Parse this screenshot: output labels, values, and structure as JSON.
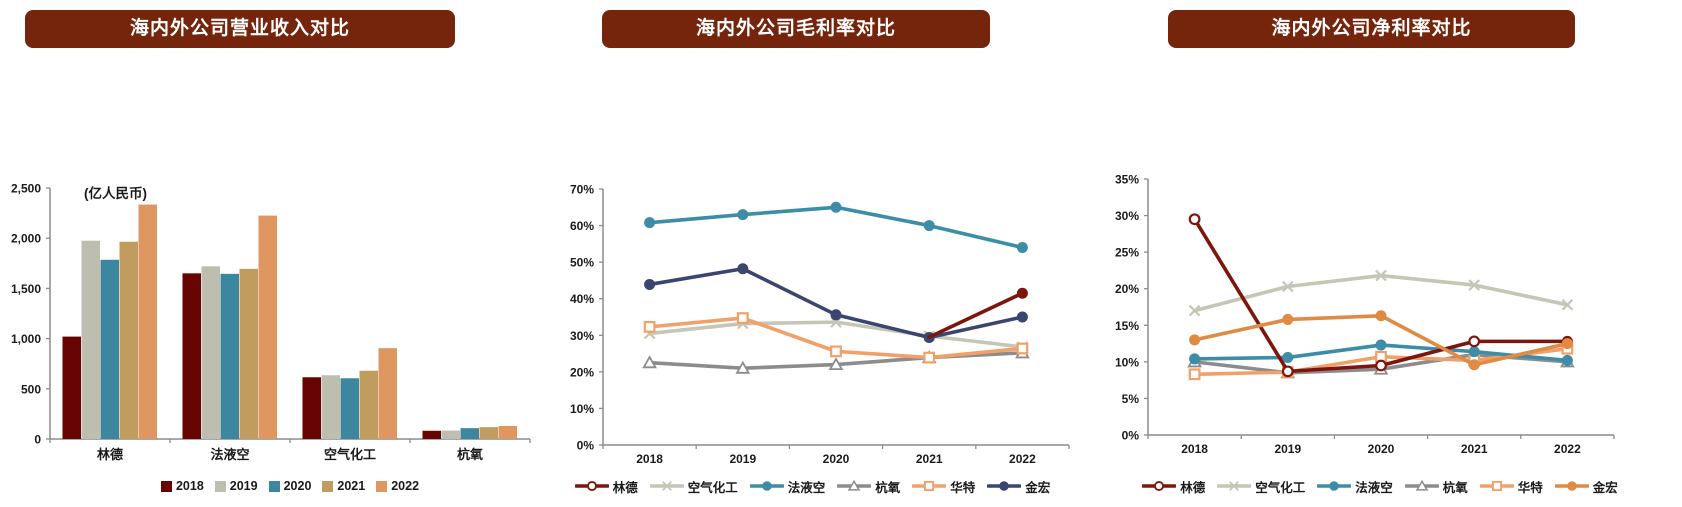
{
  "colors": {
    "title_bg": "#74250C",
    "title_text": "#FFFFFF",
    "axis": "#8C8C8C",
    "tick_text": "#1A1A1A"
  },
  "chart_data": [
    {
      "id": "revenue",
      "type": "bar",
      "title": "海内外公司营业收入对比",
      "unit_label": "(亿人民币)",
      "categories": [
        "林德",
        "法液空",
        "空气化工",
        "杭氧"
      ],
      "series": [
        {
          "name": "2018",
          "color": "#670301",
          "values": [
            1020,
            1650,
            615,
            82
          ]
        },
        {
          "name": "2019",
          "color": "#BEBEB0",
          "values": [
            1975,
            1720,
            635,
            84
          ]
        },
        {
          "name": "2020",
          "color": "#3C86A0",
          "values": [
            1785,
            1645,
            605,
            108
          ]
        },
        {
          "name": "2021",
          "color": "#C09D5E",
          "values": [
            1965,
            1695,
            680,
            118
          ]
        },
        {
          "name": "2022",
          "color": "#DF9660",
          "values": [
            2335,
            2225,
            905,
            130
          ]
        }
      ],
      "ylim": [
        0,
        2500
      ],
      "ytick_step": 500,
      "grid": false,
      "legend_position": "bottom"
    },
    {
      "id": "gross-margin",
      "type": "line",
      "title": "海内外公司毛利率对比",
      "x": [
        "2018",
        "2019",
        "2020",
        "2021",
        "2022"
      ],
      "series": [
        {
          "name": "林德",
          "color": "#7E150D",
          "marker": "circle-open",
          "markers_only_last": true,
          "end_marker": "circle",
          "z": 6,
          "values": [
            null,
            null,
            null,
            29.5,
            41.5
          ]
        },
        {
          "name": "空气化工",
          "color": "#C5C6B6",
          "marker": "x",
          "z": 1,
          "values": [
            30.5,
            33.2,
            33.6,
            29.8,
            26.8
          ]
        },
        {
          "name": "法液空",
          "color": "#3D8CA8",
          "marker": "circle",
          "z": 4,
          "values": [
            60.8,
            63.0,
            65.0,
            60.0,
            54.0
          ]
        },
        {
          "name": "杭氧",
          "color": "#8C8C8C",
          "marker": "triangle-open",
          "z": 2,
          "values": [
            22.5,
            21.0,
            22.0,
            23.9,
            25.2
          ]
        },
        {
          "name": "华特",
          "color": "#F0A169",
          "marker": "square-open",
          "z": 3,
          "values": [
            32.3,
            34.7,
            25.6,
            23.9,
            26.4
          ]
        },
        {
          "name": "金宏",
          "color": "#3A4570",
          "marker": "circle",
          "z": 5,
          "values": [
            43.9,
            48.2,
            35.6,
            29.4,
            35.0
          ]
        }
      ],
      "ylim": [
        0,
        70
      ],
      "ytick_step": 10,
      "percent": true,
      "grid": false,
      "legend_position": "bottom"
    },
    {
      "id": "net-margin",
      "type": "line",
      "title": "海内外公司净利率对比",
      "x": [
        "2018",
        "2019",
        "2020",
        "2021",
        "2022"
      ],
      "series": [
        {
          "name": "林德",
          "color": "#7E150D",
          "marker": "circle-open",
          "end_marker": "circle",
          "z": 5,
          "values": [
            29.5,
            8.7,
            9.5,
            12.8,
            12.8
          ]
        },
        {
          "name": "空气化工",
          "color": "#C5C6B6",
          "marker": "x",
          "z": 1,
          "values": [
            17.0,
            20.3,
            21.8,
            20.5,
            17.8
          ]
        },
        {
          "name": "法液空",
          "color": "#3D8CA8",
          "marker": "circle",
          "z": 4,
          "values": [
            10.4,
            10.6,
            12.3,
            11.4,
            10.2
          ]
        },
        {
          "name": "杭氧",
          "color": "#8C8C8C",
          "marker": "triangle-open",
          "z": 2,
          "values": [
            10.0,
            8.5,
            9.0,
            11.0,
            10.0
          ]
        },
        {
          "name": "华特",
          "color": "#F0A169",
          "marker": "square-open",
          "z": 3,
          "values": [
            8.3,
            8.6,
            10.7,
            10.2,
            11.8
          ]
        },
        {
          "name": "金宏",
          "color": "#E08B44",
          "marker": "circle",
          "z": 6,
          "values": [
            13.0,
            15.8,
            16.3,
            9.6,
            12.5
          ]
        }
      ],
      "ylim": [
        0,
        35
      ],
      "ytick_step": 5,
      "percent": true,
      "grid": false,
      "legend_position": "bottom"
    }
  ]
}
